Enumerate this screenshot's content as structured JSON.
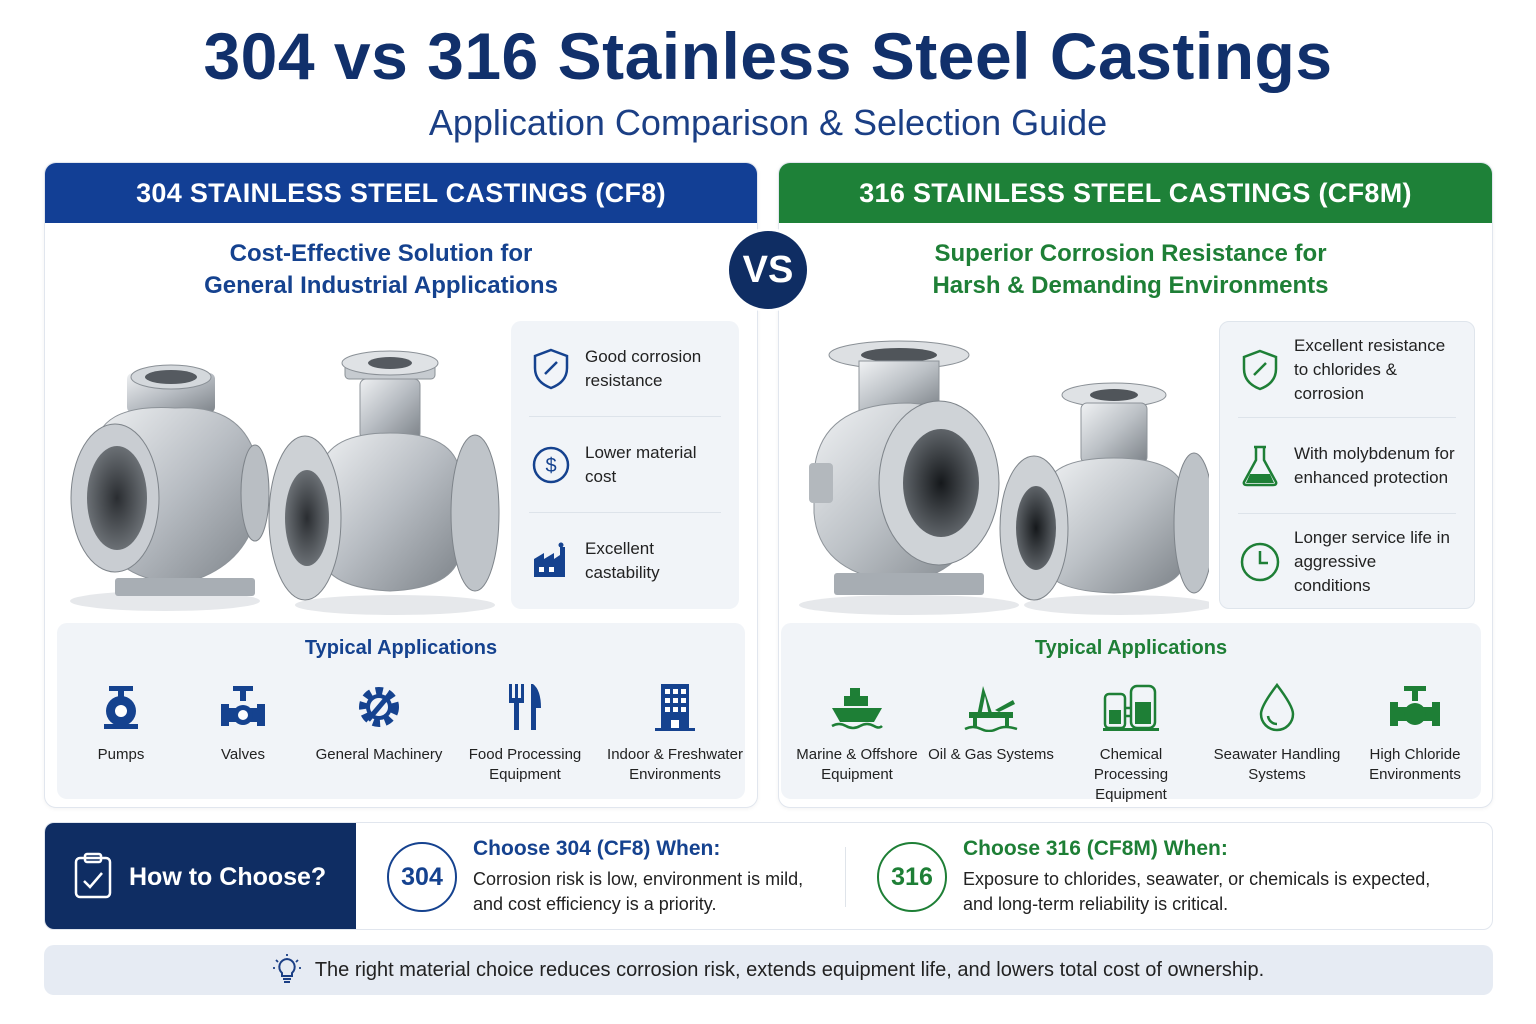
{
  "title": "304 vs 316 Stainless Steel Castings",
  "subtitle": "Application Comparison & Selection Guide",
  "vs_label": "VS",
  "left": {
    "header": "304 STAINLESS STEEL CASTINGS (CF8)",
    "tagline_line1": "Cost-Effective Solution for",
    "tagline_line2": "General Industrial Applications",
    "accent": "#15428f",
    "features": [
      {
        "icon": "shield-icon",
        "text": "Good corrosion resistance"
      },
      {
        "icon": "dollar-icon",
        "text": "Lower material cost"
      },
      {
        "icon": "factory-icon",
        "text": "Excellent castability"
      }
    ],
    "apps_title": "Typical Applications",
    "apps": [
      {
        "icon": "pump-icon",
        "label": "Pumps"
      },
      {
        "icon": "valve-icon",
        "label": "Valves"
      },
      {
        "icon": "gear-icon",
        "label": "General Machinery"
      },
      {
        "icon": "fork-knife-icon",
        "label": "Food Processing Equipment"
      },
      {
        "icon": "building-icon",
        "label": "Indoor & Freshwater Environments"
      }
    ]
  },
  "right": {
    "header": "316 STAINLESS STEEL CASTINGS (CF8M)",
    "tagline_line1": "Superior Corrosion Resistance for",
    "tagline_line2": "Harsh & Demanding Environments",
    "accent": "#1e7f36",
    "features": [
      {
        "icon": "shield-icon",
        "text": "Excellent resistance to chlorides & corrosion"
      },
      {
        "icon": "flask-icon",
        "text": "With molybdenum for enhanced protection"
      },
      {
        "icon": "clock-icon",
        "text": "Longer service life in aggressive conditions"
      }
    ],
    "apps_title": "Typical Applications",
    "apps": [
      {
        "icon": "ship-icon",
        "label": "Marine & Offshore Equipment"
      },
      {
        "icon": "oil-rig-icon",
        "label": "Oil & Gas Systems"
      },
      {
        "icon": "chemical-plant-icon",
        "label": "Chemical Processing Equipment"
      },
      {
        "icon": "water-drop-icon",
        "label": "Seawater Handling Systems"
      },
      {
        "icon": "pipe-valve-icon",
        "label": "High Chloride Environments"
      }
    ]
  },
  "choose": {
    "label": "How to Choose?",
    "option_304": {
      "badge": "304",
      "heading": "Choose 304 (CF8) When:",
      "line1": "Corrosion risk is low, environment is mild,",
      "line2": "and cost efficiency is a priority."
    },
    "option_316": {
      "badge": "316",
      "heading": "Choose 316 (CF8M) When:",
      "line1": "Exposure to chlorides, seawater, or chemicals is expected,",
      "line2": "and long-term reliability is critical."
    }
  },
  "footer": "The right material choice reduces corrosion risk, extends equipment life, and lowers total cost of ownership."
}
